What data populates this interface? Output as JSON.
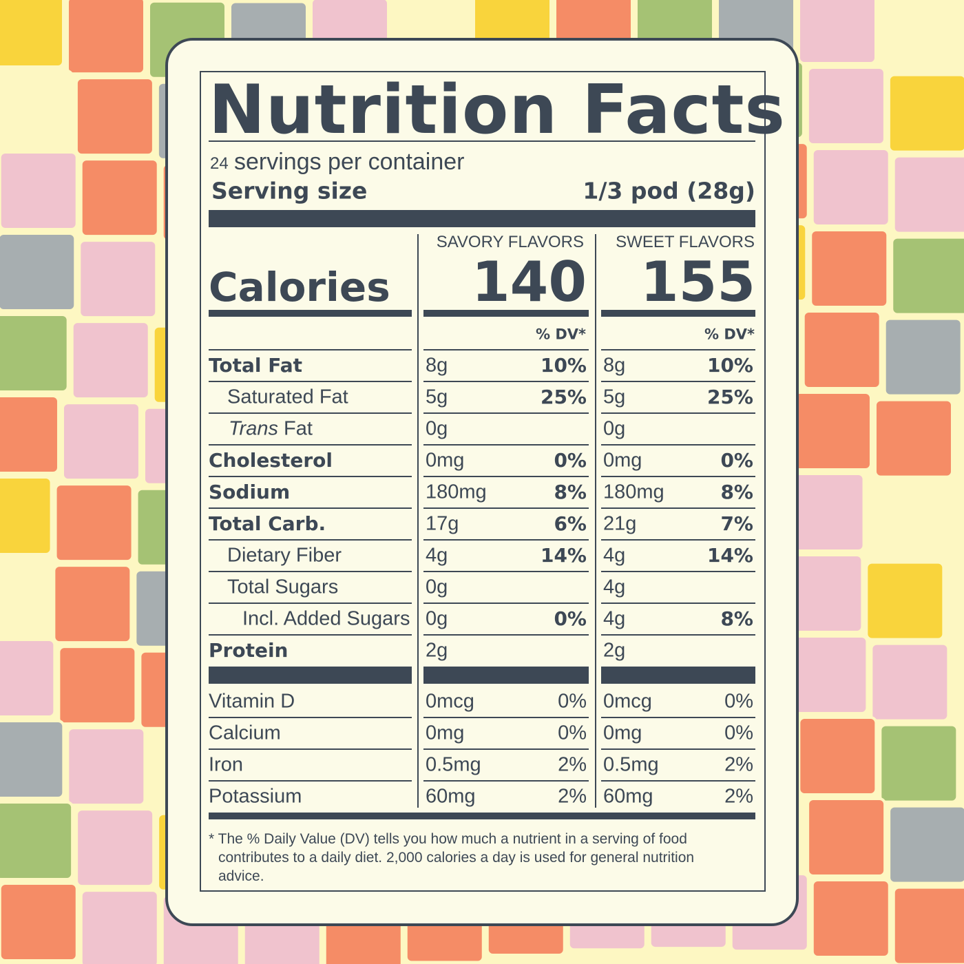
{
  "title": "Nutrition Facts",
  "servings": {
    "count": "24",
    "text": "servings per container"
  },
  "serving_size": {
    "label": "Serving size",
    "value": "1/3 pod (28g)"
  },
  "columns": [
    "SAVORY FLAVORS",
    "SWEET FLAVORS"
  ],
  "calories": {
    "label": "Calories",
    "values": [
      "140",
      "155"
    ]
  },
  "dv_header": "% DV*",
  "nutrients": [
    {
      "name": "Total Fat",
      "level": 0,
      "bold": true,
      "cells": [
        [
          "8g",
          "10%"
        ],
        [
          "8g",
          "10%"
        ]
      ]
    },
    {
      "name": "Saturated Fat",
      "level": 1,
      "bold": false,
      "cells": [
        [
          "5g",
          "25%"
        ],
        [
          "5g",
          "25%"
        ]
      ]
    },
    {
      "prefix": "Trans",
      "name": "Fat",
      "level": 1,
      "bold": false,
      "cells": [
        [
          "0g"
        ],
        [
          "0g"
        ]
      ]
    },
    {
      "name": "Cholesterol",
      "level": 0,
      "bold": true,
      "cells": [
        [
          "0mg",
          "0%"
        ],
        [
          "0mg",
          "0%"
        ]
      ]
    },
    {
      "name": "Sodium",
      "level": 0,
      "bold": true,
      "cells": [
        [
          "180mg",
          "8%"
        ],
        [
          "180mg",
          "8%"
        ]
      ]
    },
    {
      "name": "Total Carb.",
      "level": 0,
      "bold": true,
      "cells": [
        [
          "17g",
          "6%"
        ],
        [
          "21g",
          "7%"
        ]
      ]
    },
    {
      "name": "Dietary Fiber",
      "level": 1,
      "bold": false,
      "cells": [
        [
          "4g",
          "14%"
        ],
        [
          "4g",
          "14%"
        ]
      ]
    },
    {
      "name": "Total Sugars",
      "level": 1,
      "bold": false,
      "cells": [
        [
          "0g"
        ],
        [
          "4g"
        ]
      ]
    },
    {
      "name": "Incl. Added Sugars",
      "level": 2,
      "bold": false,
      "cells": [
        [
          "0g",
          "0%"
        ],
        [
          "4g",
          "8%"
        ]
      ]
    },
    {
      "name": "Protein",
      "level": 0,
      "bold": true,
      "cells": [
        [
          "2g"
        ],
        [
          "2g"
        ]
      ]
    }
  ],
  "minerals": [
    {
      "name": "Vitamin D",
      "cells": [
        [
          "0mcg",
          "0%"
        ],
        [
          "0mcg",
          "0%"
        ]
      ]
    },
    {
      "name": "Calcium",
      "cells": [
        [
          "0mg",
          "0%"
        ],
        [
          "0mg",
          "0%"
        ]
      ]
    },
    {
      "name": "Iron",
      "cells": [
        [
          "0.5mg",
          "2%"
        ],
        [
          "0.5mg",
          "2%"
        ]
      ]
    },
    {
      "name": "Potassium",
      "cells": [
        [
          "60mg",
          "2%"
        ],
        [
          "60mg",
          "2%"
        ]
      ]
    }
  ],
  "footnote": "* The % Daily Value (DV) tells you how much a nutrient in a serving of food contributes to a daily diet. 2,000 calories a day is used for general nutrition advice."
}
